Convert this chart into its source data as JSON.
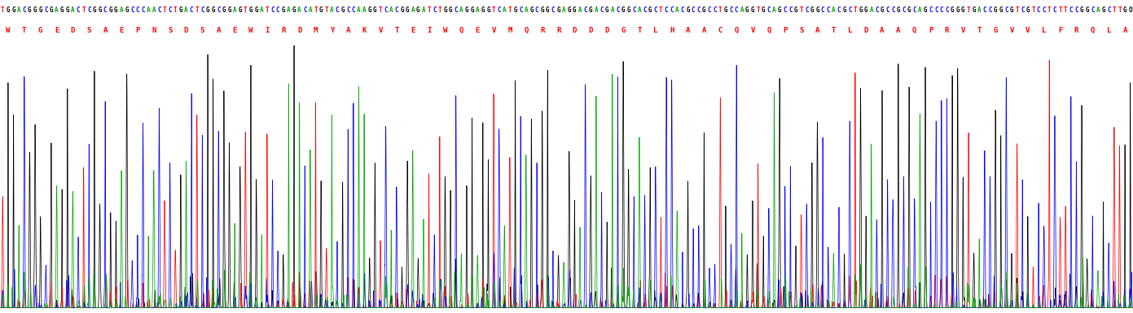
{
  "dna_sequence": "TGGACGGGCGAGGACTCGGCGGAGCCCAACTCTGACTCGGCGGAGTGGATCCGAGACATGTACGCCAAGGTCACGGAGATCTGGCAGGAGGTCATGCAGCGGCGAGGACGACGACGGCACGCTCCACGCCGCCTGCCAGGTGCAGCCGTCGGCCACGCTGGACGCCGCGCAGCCCCGGGTGACCGGCGTCGTCCTCTTCCGGCAGCTTGO",
  "aa_sequence": "W T G E D S A E P N S D S A E W I R D M Y A K V T E I W Q E V M Q R R D D D G T L H A A C Q V Q P S A T L D A A Q P R V T G V V L F R Q L A",
  "nuc_colors": {
    "T": "#FF0000",
    "G": "#000000",
    "A": "#00AA00",
    "C": "#0000FF",
    "O": "#000000"
  },
  "channel_colors": [
    "#000000",
    "#FF0000",
    "#0000FF",
    "#00AA00"
  ],
  "channel_nucs": [
    "G",
    "T",
    "C",
    "A"
  ],
  "aa_color": "#FF0000",
  "background": "#FFFFFF",
  "num_bases": 210,
  "figsize": [
    13.91,
    3.85
  ],
  "dpi": 100,
  "seed": 42
}
